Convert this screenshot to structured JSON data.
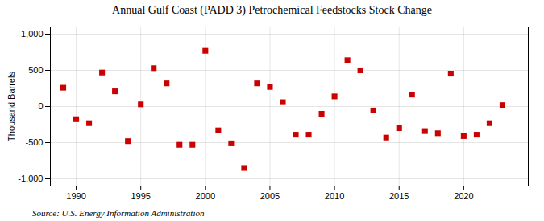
{
  "chart_data": {
    "type": "scatter",
    "title": "Annual Gulf Coast (PADD 3) Petrochemical Feedstocks Stock Change",
    "ylabel": "Thousand Barrels",
    "source": "Source: U.S. Energy Information Administration",
    "x": [
      1989,
      1990,
      1991,
      1992,
      1993,
      1994,
      1995,
      1996,
      1997,
      1998,
      1999,
      2000,
      2001,
      2002,
      2003,
      2004,
      2005,
      2006,
      2007,
      2008,
      2009,
      2010,
      2011,
      2012,
      2013,
      2014,
      2015,
      2016,
      2017,
      2018,
      2019,
      2020,
      2021,
      2022,
      2023
    ],
    "values": [
      260,
      -175,
      -230,
      470,
      210,
      -480,
      30,
      530,
      320,
      -530,
      -530,
      770,
      -330,
      -510,
      -850,
      320,
      270,
      60,
      -390,
      -390,
      -100,
      140,
      640,
      500,
      -55,
      -430,
      -300,
      165,
      -340,
      -370,
      455,
      -410,
      -390,
      -230,
      20
    ],
    "color": "#cc0000",
    "marker": "square",
    "xlim": [
      1988,
      2025
    ],
    "ylim": [
      -1100,
      1100
    ],
    "xticks": [
      1990,
      1995,
      2000,
      2005,
      2010,
      2015,
      2020
    ],
    "yticks": [
      {
        "value": -1000,
        "label": "-1,000"
      },
      -500,
      0,
      500,
      {
        "value": 1000,
        "label": "1,000"
      }
    ],
    "grid": true
  }
}
